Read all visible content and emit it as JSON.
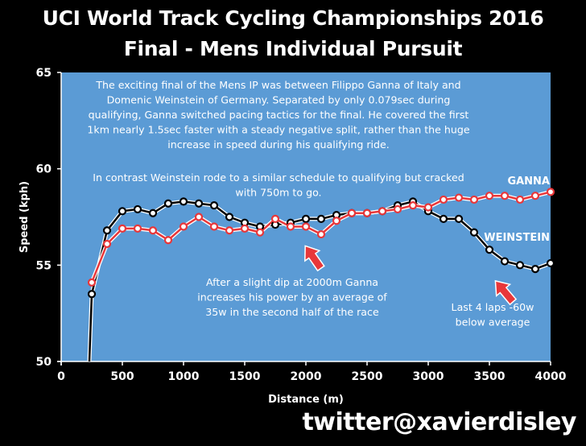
{
  "chart": {
    "title_line1": "UCI World Track Cycling Championships 2016",
    "title_line2": "Final - Mens Individual Pursuit",
    "credit": "twitter@xavierdisley",
    "colors": {
      "background": "#000000",
      "plot_area": "#5b9bd5",
      "ganna": "#e8373a",
      "weinstein": "#000000",
      "marker_fill": "#ffffff",
      "arrow": "#e8373a"
    }
  },
  "chart_data": {
    "type": "line",
    "xlabel": "Distance (m)",
    "ylabel": "Speed (kph)",
    "xlim": [
      0,
      4000
    ],
    "ylim": [
      50,
      65
    ],
    "x_ticks": [
      0,
      500,
      1000,
      1500,
      2000,
      2500,
      3000,
      3500,
      4000
    ],
    "y_ticks": [
      50,
      55,
      60,
      65
    ],
    "grid": false,
    "series": [
      {
        "name": "GANNA",
        "color": "#e8373a",
        "x": [
          250,
          375,
          500,
          625,
          750,
          875,
          1000,
          1125,
          1250,
          1375,
          1500,
          1625,
          1750,
          1875,
          2000,
          2125,
          2250,
          2375,
          2500,
          2625,
          2750,
          2875,
          3000,
          3125,
          3250,
          3375,
          3500,
          3625,
          3750,
          3875,
          4000
        ],
        "y": [
          54.1,
          56.1,
          56.9,
          56.9,
          56.8,
          56.3,
          57.0,
          57.5,
          57.0,
          56.8,
          56.9,
          56.7,
          57.4,
          57.0,
          57.0,
          56.6,
          57.3,
          57.7,
          57.7,
          57.8,
          57.9,
          58.1,
          58.0,
          58.4,
          58.5,
          58.4,
          58.6,
          58.6,
          58.4,
          58.6,
          58.8
        ]
      },
      {
        "name": "WEINSTEIN",
        "color": "#000000",
        "x": [
          250,
          375,
          500,
          625,
          750,
          875,
          1000,
          1125,
          1250,
          1375,
          1500,
          1625,
          1750,
          1875,
          2000,
          2125,
          2250,
          2375,
          2500,
          2625,
          2750,
          2875,
          3000,
          3125,
          3250,
          3375,
          3500,
          3625,
          3750,
          3875,
          4000
        ],
        "y": [
          53.5,
          56.8,
          57.8,
          57.9,
          57.7,
          58.2,
          58.3,
          58.2,
          58.1,
          57.5,
          57.2,
          57.0,
          57.1,
          57.2,
          57.4,
          57.4,
          57.6,
          57.7,
          57.7,
          57.8,
          58.1,
          58.3,
          57.8,
          57.4,
          57.4,
          56.7,
          55.8,
          55.2,
          55.0,
          54.8,
          55.1
        ]
      }
    ],
    "weinstein_start": [
      [
        230,
        50
      ],
      [
        250,
        53.5
      ]
    ],
    "series_labels": [
      {
        "text": "GANNA",
        "series": "GANNA"
      },
      {
        "text": "WEINSTEIN",
        "series": "WEINSTEIN"
      }
    ],
    "annotations": {
      "intro": [
        "The exciting final of the Mens IP was between Filippo Ganna of Italy and",
        "Domenic Weinstein of Germany. Separated by only 0.079sec during",
        "qualifying, Ganna switched pacing tactics for the final. He covered the first",
        "1km nearly 1.5sec faster with a steady negative split, rather than the huge",
        "increase in speed during his qualifying ride."
      ],
      "contrast": [
        "In contrast Weinstein rode to a similar schedule to qualifying but cracked",
        "with 750m to go."
      ],
      "dip": [
        "After a slight dip at 2000m Ganna",
        "increases his power by an average of",
        "35w in the second half of the race"
      ],
      "laps": [
        "Last 4 laps -60w",
        "below average"
      ]
    },
    "arrows": [
      {
        "points_to": [
          2100,
          56.5
        ]
      },
      {
        "points_to": [
          3720,
          54.6
        ]
      }
    ]
  }
}
